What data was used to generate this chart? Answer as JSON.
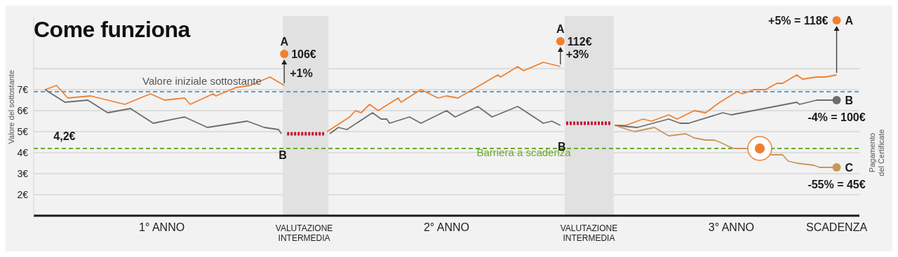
{
  "chart_data": {
    "type": "line",
    "title": "Come funziona",
    "ylabel": "Valore del sottostante",
    "xlim": [
      0.05,
      2.95
    ],
    "xticks": [
      {
        "value": 0.5,
        "label": "1° ANNO"
      },
      {
        "value": 1,
        "label": "VALUTAZIONE INTERMEDIA"
      },
      {
        "value": 1.5,
        "label": "2° ANNO"
      },
      {
        "value": 2,
        "label": "VALUTAZIONE INTERMEDIA"
      },
      {
        "value": 2.5,
        "label": "3° ANNO"
      },
      {
        "value": 2.87,
        "label": "SCADENZA"
      }
    ],
    "ylim": [
      1,
      10.5
    ],
    "yticks": [
      {
        "value": 2,
        "label": "2€"
      },
      {
        "value": 3,
        "label": "3€"
      },
      {
        "value": 4,
        "label": "4€"
      },
      {
        "value": 5,
        "label": "5€"
      },
      {
        "value": 6,
        "label": "6€"
      },
      {
        "value": 7,
        "label": "7€"
      },
      {
        "value": 8,
        "label": null
      }
    ],
    "grid": "y",
    "series": [
      {
        "name": "A",
        "color": "#f0802f",
        "x": [
          0.09,
          0.13,
          0.17,
          0.25,
          0.37,
          0.46,
          0.51,
          0.58,
          0.6,
          0.68,
          0.69,
          0.76,
          0.81,
          0.88,
          0.93,
          1.0,
          1.08,
          1.16,
          1.18,
          1.2,
          1.23,
          1.26,
          1.33,
          1.34,
          1.41,
          1.47,
          1.5,
          1.54,
          1.68,
          1.69,
          1.75,
          1.77,
          1.84,
          1.9,
          2.0,
          2.09,
          2.13,
          2.19,
          2.22,
          2.28,
          2.31,
          2.37,
          2.41,
          2.46,
          2.52,
          2.54,
          2.58,
          2.62,
          2.66,
          2.68,
          2.73,
          2.75,
          2.8,
          2.83,
          2.87
        ],
        "values": [
          7.0,
          7.2,
          6.6,
          6.7,
          6.3,
          6.8,
          6.5,
          6.6,
          6.3,
          6.8,
          6.7,
          7.1,
          7.2,
          7.6,
          7.2,
          null,
          5.0,
          5.7,
          6.0,
          5.9,
          6.3,
          6.0,
          6.6,
          6.4,
          7.0,
          6.6,
          6.7,
          6.6,
          7.7,
          7.6,
          8.1,
          7.9,
          8.3,
          8.1,
          null,
          5.3,
          5.3,
          5.6,
          5.5,
          5.8,
          5.6,
          6.0,
          5.9,
          6.4,
          6.9,
          6.8,
          7.0,
          7.0,
          7.3,
          7.3,
          7.7,
          7.5,
          7.6,
          7.6,
          7.7
        ]
      },
      {
        "name": "B",
        "color": "#6d6d6d",
        "x": [
          0.09,
          0.16,
          0.24,
          0.31,
          0.39,
          0.47,
          0.58,
          0.66,
          0.8,
          0.86,
          0.91,
          0.92,
          1.0,
          1.09,
          1.12,
          1.15,
          1.24,
          1.27,
          1.29,
          1.3,
          1.37,
          1.41,
          1.5,
          1.53,
          1.61,
          1.66,
          1.75,
          1.84,
          1.87,
          1.9,
          2.0,
          2.09,
          2.17,
          2.28,
          2.32,
          2.35,
          2.47,
          2.5,
          2.73,
          2.74,
          2.8,
          2.87
        ],
        "values": [
          7.0,
          6.4,
          6.5,
          5.9,
          6.1,
          5.4,
          5.7,
          5.2,
          5.5,
          5.2,
          5.1,
          4.9,
          null,
          4.9,
          5.2,
          5.1,
          5.9,
          5.6,
          5.6,
          5.4,
          5.7,
          5.4,
          6.0,
          5.7,
          6.2,
          5.7,
          6.2,
          5.4,
          5.5,
          5.3,
          null,
          5.3,
          5.2,
          5.6,
          5.4,
          5.4,
          5.9,
          5.8,
          6.4,
          6.3,
          6.5,
          6.5
        ]
      },
      {
        "name": "C",
        "color": "#c9975b",
        "x": [
          2.09,
          2.16,
          2.23,
          2.28,
          2.34,
          2.37,
          2.41,
          2.44,
          2.46,
          2.49,
          2.51,
          2.6,
          2.64,
          2.68,
          2.7,
          2.73,
          2.79,
          2.81,
          2.87
        ],
        "values": [
          5.3,
          5.0,
          5.2,
          4.8,
          4.9,
          4.7,
          4.6,
          4.6,
          4.5,
          4.3,
          4.2,
          4.2,
          3.9,
          3.9,
          3.6,
          3.5,
          3.4,
          3.3,
          3.3
        ]
      },
      {
        "color": "#c8102e",
        "line_style": "dotted",
        "x": [
          0.94,
          1.07,
          1.5,
          1.92,
          2.08
        ],
        "values": [
          4.9,
          4.9,
          null,
          5.4,
          5.4
        ]
      },
      {
        "type": "scatter",
        "marker": "circle",
        "x": [
          0.93,
          1.9,
          2.87,
          2.87,
          2.87
        ],
        "values": [
          8.7,
          9.3,
          10.3,
          6.5,
          3.3
        ],
        "colors": [
          "#f0802f",
          "#f0802f",
          "#f0802f",
          "#6d6d6d",
          "#c9975b"
        ]
      },
      {
        "type": "bubble",
        "x": [
          2.6
        ],
        "values": [
          4.2
        ],
        "sizes": [
          1
        ],
        "color": "#f0802f"
      }
    ],
    "ref_lines": [
      {
        "axis": "y",
        "value": 6.9,
        "label": "Valore iniziale sottostante",
        "color": "#5b9bd5",
        "line_style": "dashed"
      },
      {
        "axis": "y",
        "value": 4.2,
        "label": "Barriera a scadenza",
        "color": "#6aaa2a",
        "line_style": "dashed"
      }
    ],
    "bands": [
      {
        "axis": "x",
        "from": 0.925,
        "to": 1.085,
        "color": "#e1e1e1"
      },
      {
        "axis": "x",
        "from": 1.915,
        "to": 2.087,
        "color": "#e1e1e1"
      }
    ],
    "annotations": [
      {
        "text": "106€",
        "x": 0.93,
        "y": 8.7
      },
      {
        "text": "112€",
        "x": 1.9,
        "y": 9.3
      },
      {
        "text": "+5% = 118€",
        "x": 2.87,
        "y": 10.3
      },
      {
        "text": "-4% = 100€",
        "x": 2.87,
        "y": 6.5
      },
      {
        "text": "-55% = 45€",
        "x": 2.87,
        "y": 3.3
      },
      {
        "text": "+1%",
        "x": 0.93,
        "y": 7.2
      },
      {
        "text": "+3%",
        "x": 1.9,
        "y": 8.1
      },
      {
        "text": "4,2€",
        "x": 0.1,
        "y": 4.2
      },
      "Pagamento del Certificate"
    ]
  }
}
